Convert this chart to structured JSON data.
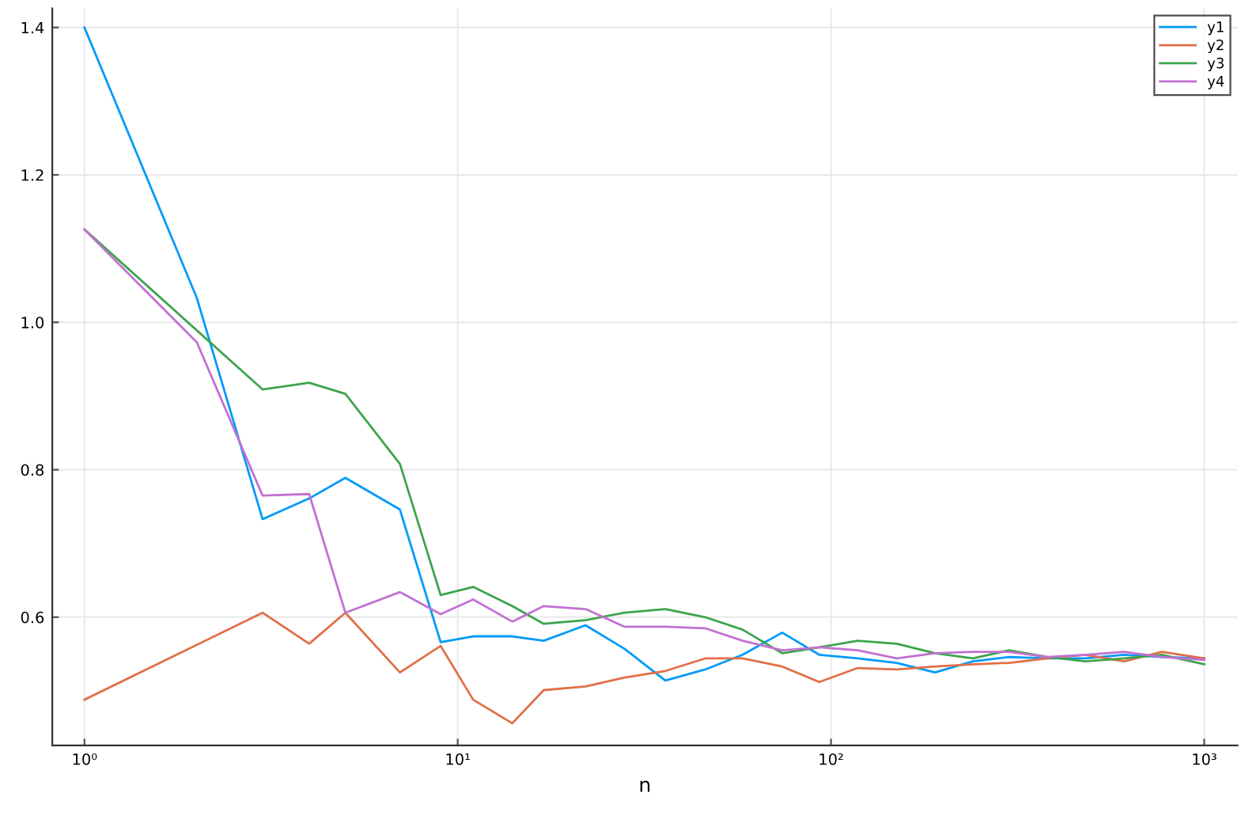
{
  "chart_data": {
    "type": "line",
    "xlabel": "n",
    "log": "x",
    "xlim": [
      0.82,
      1228
    ],
    "ylim": [
      0.426,
      1.426
    ],
    "xticks": [
      {
        "value": 1,
        "label": "10⁰"
      },
      {
        "value": 10,
        "label": "10¹"
      },
      {
        "value": 100,
        "label": "10²"
      },
      {
        "value": 1000,
        "label": "10³"
      }
    ],
    "yticks": [
      0.6,
      0.8,
      {
        "value": 1.0,
        "label": "1.0"
      },
      1.2,
      1.4
    ],
    "grid": true,
    "legend": "top right",
    "line_style": "solid",
    "marker": "none",
    "series": [
      {
        "name": "y1",
        "color": "#009af9",
        "x": [
          1,
          2,
          3,
          4,
          5,
          7,
          9,
          11,
          14,
          17,
          22,
          28,
          36,
          46,
          58,
          74,
          93,
          118,
          150,
          190,
          240,
          300,
          380,
          480,
          610,
          770,
          1000
        ],
        "values": [
          1.4,
          1.033,
          0.733,
          0.761,
          0.789,
          0.746,
          0.566,
          0.574,
          0.574,
          0.568,
          0.589,
          0.557,
          0.514,
          0.529,
          0.549,
          0.579,
          0.549,
          0.544,
          0.538,
          0.525,
          0.54,
          0.546,
          0.544,
          0.544,
          0.549,
          0.546,
          0.544
        ]
      },
      {
        "name": "y2",
        "color": "#e26f46",
        "x": [
          1,
          3,
          4,
          5,
          7,
          9,
          11,
          14,
          17,
          22,
          28,
          36,
          46,
          58,
          74,
          93,
          118,
          150,
          190,
          240,
          300,
          380,
          480,
          610,
          770,
          1000
        ],
        "values": [
          0.488,
          0.606,
          0.564,
          0.606,
          0.525,
          0.561,
          0.488,
          0.456,
          0.501,
          0.506,
          0.518,
          0.527,
          0.544,
          0.544,
          0.533,
          0.512,
          0.531,
          0.529,
          0.533,
          0.536,
          0.538,
          0.544,
          0.549,
          0.54,
          0.553,
          0.544
        ]
      },
      {
        "name": "y3",
        "color": "#3da44d",
        "x": [
          1,
          3,
          4,
          5,
          7,
          9,
          11,
          14,
          17,
          22,
          28,
          36,
          46,
          58,
          74,
          93,
          118,
          150,
          190,
          240,
          300,
          380,
          480,
          610,
          770,
          1000
        ],
        "values": [
          1.126,
          0.909,
          0.918,
          0.903,
          0.808,
          0.63,
          0.641,
          0.615,
          0.591,
          0.596,
          0.606,
          0.611,
          0.6,
          0.583,
          0.551,
          0.559,
          0.568,
          0.564,
          0.551,
          0.544,
          0.555,
          0.546,
          0.54,
          0.544,
          0.549,
          0.536
        ]
      },
      {
        "name": "y4",
        "color": "#c271d2",
        "x": [
          1,
          2,
          3,
          4,
          5,
          7,
          9,
          11,
          14,
          17,
          22,
          28,
          36,
          46,
          58,
          74,
          93,
          118,
          150,
          190,
          240,
          300,
          380,
          480,
          610,
          770,
          1000
        ],
        "values": [
          1.126,
          0.973,
          0.765,
          0.767,
          0.606,
          0.634,
          0.604,
          0.624,
          0.594,
          0.615,
          0.611,
          0.587,
          0.587,
          0.585,
          0.568,
          0.555,
          0.559,
          0.555,
          0.544,
          0.551,
          0.553,
          0.553,
          0.546,
          0.549,
          0.553,
          0.546,
          0.542
        ]
      }
    ]
  }
}
